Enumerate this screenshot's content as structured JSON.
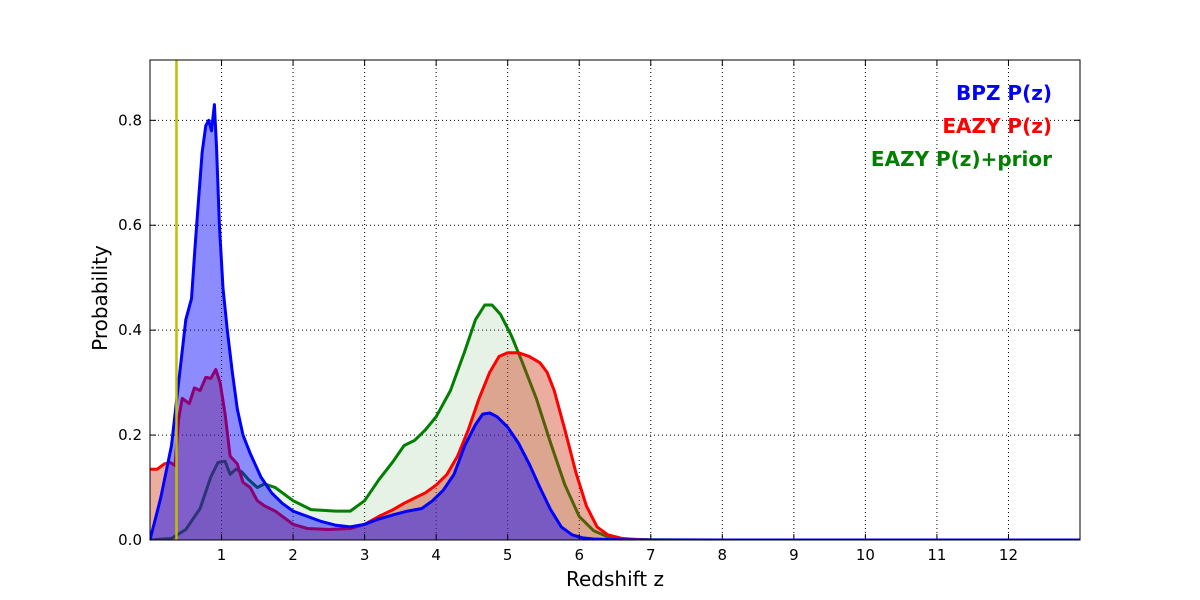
{
  "chart_data": {
    "type": "area",
    "title": "",
    "xlabel": "Redshift z",
    "ylabel": "Probability",
    "xlim": [
      0,
      13
    ],
    "ylim": [
      0,
      0.915
    ],
    "xticks": [
      1,
      2,
      3,
      4,
      5,
      6,
      7,
      8,
      9,
      10,
      11,
      12
    ],
    "xtick_labels": [
      "1",
      "2",
      "3",
      "4",
      "5",
      "6",
      "7",
      "8",
      "9",
      "10",
      "11",
      "12"
    ],
    "yticks": [
      0.0,
      0.2,
      0.4,
      0.6,
      0.8
    ],
    "ytick_labels": [
      "0.0",
      "0.2",
      "0.4",
      "0.6",
      "0.8"
    ],
    "grid": true,
    "legend_position": "top-right",
    "vertical_line": {
      "x": 0.37,
      "color": "#bfbf00"
    },
    "series": [
      {
        "name": "EAZY P(z)+prior",
        "label": "EAZY P(z)+prior",
        "color": "#007f00",
        "fill": "#007f00",
        "fill_opacity": 0.1,
        "x": [
          0.0,
          0.3,
          0.5,
          0.7,
          0.85,
          0.95,
          1.05,
          1.12,
          1.2,
          1.28,
          1.38,
          1.5,
          1.6,
          1.75,
          2.0,
          2.25,
          2.6,
          2.8,
          3.0,
          3.2,
          3.4,
          3.55,
          3.7,
          3.85,
          4.0,
          4.2,
          4.4,
          4.55,
          4.68,
          4.78,
          4.9,
          5.05,
          5.2,
          5.4,
          5.6,
          5.8,
          6.0,
          6.2,
          6.4,
          6.6,
          7.0,
          8.0,
          10.0,
          13.0
        ],
        "y": [
          0.0,
          0.003,
          0.02,
          0.06,
          0.12,
          0.148,
          0.15,
          0.125,
          0.135,
          0.13,
          0.115,
          0.1,
          0.107,
          0.1,
          0.075,
          0.058,
          0.055,
          0.055,
          0.075,
          0.115,
          0.15,
          0.18,
          0.19,
          0.21,
          0.235,
          0.285,
          0.36,
          0.42,
          0.448,
          0.448,
          0.43,
          0.39,
          0.34,
          0.27,
          0.185,
          0.105,
          0.045,
          0.018,
          0.006,
          0.002,
          0.0005,
          0.0,
          0.0,
          0.0
        ]
      },
      {
        "name": "EAZY P(z)",
        "label": "EAZY P(z)",
        "color": "#ff0000",
        "fill": "#cc3311",
        "fill_opacity": 0.4,
        "x": [
          0.0,
          0.1,
          0.2,
          0.28,
          0.35,
          0.4,
          0.45,
          0.5,
          0.55,
          0.62,
          0.7,
          0.78,
          0.85,
          0.92,
          0.98,
          1.05,
          1.12,
          1.22,
          1.3,
          1.4,
          1.5,
          1.6,
          1.75,
          1.9,
          2.0,
          2.2,
          2.5,
          2.8,
          3.0,
          3.2,
          3.4,
          3.55,
          3.7,
          3.85,
          4.0,
          4.15,
          4.3,
          4.45,
          4.6,
          4.75,
          4.88,
          5.0,
          5.15,
          5.3,
          5.45,
          5.55,
          5.65,
          5.8,
          5.95,
          6.1,
          6.25,
          6.4,
          6.6,
          6.8,
          7.0,
          8.0,
          10.0,
          13.0
        ],
        "y": [
          0.135,
          0.135,
          0.145,
          0.148,
          0.142,
          0.23,
          0.27,
          0.265,
          0.26,
          0.29,
          0.285,
          0.31,
          0.308,
          0.325,
          0.3,
          0.24,
          0.16,
          0.145,
          0.11,
          0.1,
          0.075,
          0.065,
          0.055,
          0.04,
          0.03,
          0.022,
          0.02,
          0.022,
          0.03,
          0.045,
          0.058,
          0.07,
          0.08,
          0.09,
          0.105,
          0.125,
          0.16,
          0.21,
          0.27,
          0.32,
          0.35,
          0.357,
          0.357,
          0.35,
          0.338,
          0.32,
          0.285,
          0.21,
          0.13,
          0.065,
          0.025,
          0.01,
          0.003,
          0.001,
          0.0,
          0.0,
          0.0,
          0.0
        ]
      },
      {
        "name": "BPZ P(z)",
        "label": "BPZ P(z)",
        "color": "#0000ff",
        "fill": "#0000ff",
        "fill_opacity": 0.45,
        "x": [
          0.0,
          0.15,
          0.3,
          0.4,
          0.5,
          0.58,
          0.63,
          0.68,
          0.73,
          0.78,
          0.82,
          0.86,
          0.9,
          0.93,
          0.97,
          1.02,
          1.08,
          1.15,
          1.22,
          1.3,
          1.4,
          1.55,
          1.7,
          1.85,
          2.0,
          2.2,
          2.4,
          2.6,
          2.8,
          3.0,
          3.2,
          3.4,
          3.6,
          3.8,
          3.95,
          4.1,
          4.25,
          4.4,
          4.55,
          4.65,
          4.75,
          4.85,
          5.0,
          5.15,
          5.3,
          5.45,
          5.6,
          5.75,
          5.9,
          6.05,
          6.2,
          6.4,
          6.6,
          7.0,
          8.0,
          10.0,
          12.0,
          13.0
        ],
        "y": [
          0.0,
          0.08,
          0.18,
          0.3,
          0.42,
          0.46,
          0.56,
          0.65,
          0.74,
          0.79,
          0.8,
          0.78,
          0.83,
          0.75,
          0.6,
          0.48,
          0.4,
          0.32,
          0.25,
          0.2,
          0.165,
          0.12,
          0.09,
          0.07,
          0.055,
          0.045,
          0.035,
          0.028,
          0.025,
          0.03,
          0.04,
          0.048,
          0.055,
          0.06,
          0.075,
          0.095,
          0.125,
          0.18,
          0.22,
          0.24,
          0.242,
          0.235,
          0.215,
          0.185,
          0.145,
          0.1,
          0.058,
          0.025,
          0.01,
          0.004,
          0.002,
          0.001,
          0.0005,
          0.0,
          0.0,
          0.0,
          0.0,
          0.0
        ]
      }
    ],
    "legend": [
      {
        "label": "BPZ P(z)",
        "color": "#0000ff"
      },
      {
        "label": "EAZY P(z)",
        "color": "#ff0000"
      },
      {
        "label": "EAZY P(z)+prior",
        "color": "#007f00"
      }
    ]
  }
}
